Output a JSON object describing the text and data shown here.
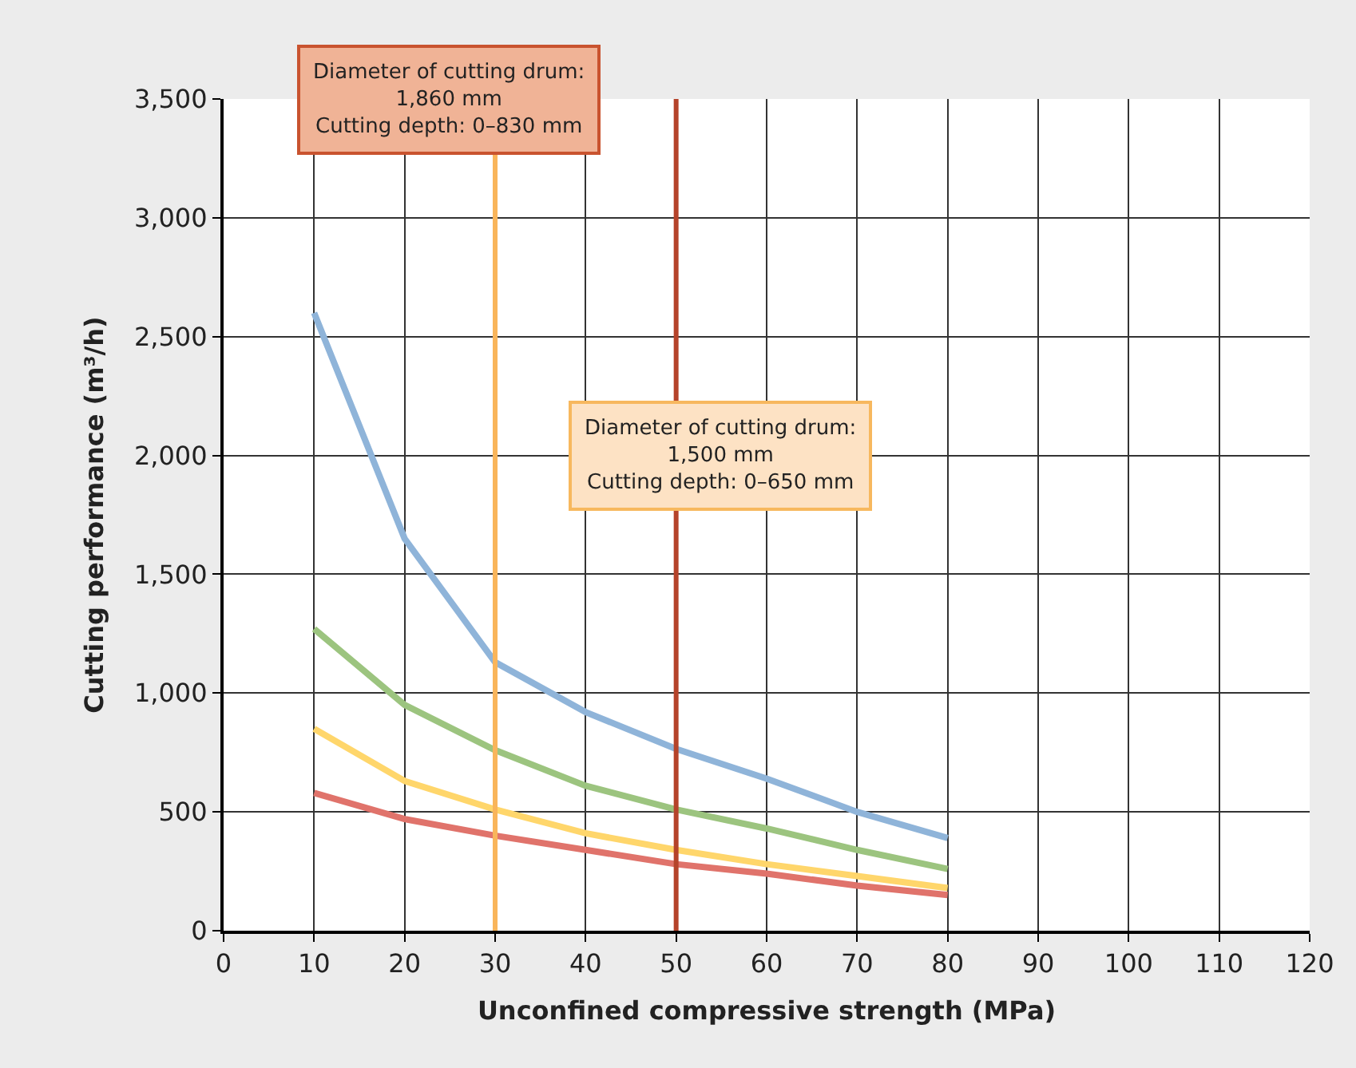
{
  "chart_data": {
    "type": "line",
    "xlabel": "Unconfined compressive strength (MPa)",
    "ylabel": "Cutting performance (m³/h)",
    "x": [
      10,
      20,
      30,
      40,
      50,
      60,
      70,
      80
    ],
    "series": [
      {
        "color": "#8fb4d9",
        "values": [
          2600,
          1650,
          1130,
          920,
          765,
          640,
          500,
          390
        ]
      },
      {
        "color": "#9cc47f",
        "values": [
          1270,
          950,
          760,
          610,
          510,
          430,
          340,
          260
        ]
      },
      {
        "color": "#ffd66b",
        "values": [
          850,
          630,
          510,
          410,
          340,
          280,
          230,
          180
        ]
      },
      {
        "color": "#e0736b",
        "values": [
          580,
          470,
          400,
          340,
          280,
          240,
          190,
          150
        ]
      }
    ],
    "xlim": [
      0,
      120
    ],
    "xticks": [
      0,
      10,
      20,
      30,
      40,
      50,
      60,
      70,
      80,
      90,
      100,
      110,
      120
    ],
    "ylim": [
      0,
      3500
    ],
    "yticks": [
      0,
      {
        "value": 500,
        "label": "500"
      },
      {
        "value": 1000,
        "label": "1,000"
      },
      {
        "value": 1500,
        "label": "1,500"
      },
      {
        "value": 2000,
        "label": "2,000"
      },
      {
        "value": 2500,
        "label": "2,500"
      },
      {
        "value": 3000,
        "label": "3,000"
      },
      {
        "value": 3500,
        "label": "3,500"
      }
    ],
    "ref_lines": [
      {
        "axis": "x",
        "value": 30,
        "color": "#f9b55b"
      },
      {
        "axis": "x",
        "value": 50,
        "color": "#b5432a"
      }
    ],
    "annotations": [
      "Diameter of cutting drum:\n1,860 mm\nCutting depth: 0–830 mm",
      "Diameter of cutting drum:\n1,500 mm\nCutting depth: 0–650 mm"
    ],
    "grid": true,
    "marker": "none",
    "line_style": "solid"
  }
}
